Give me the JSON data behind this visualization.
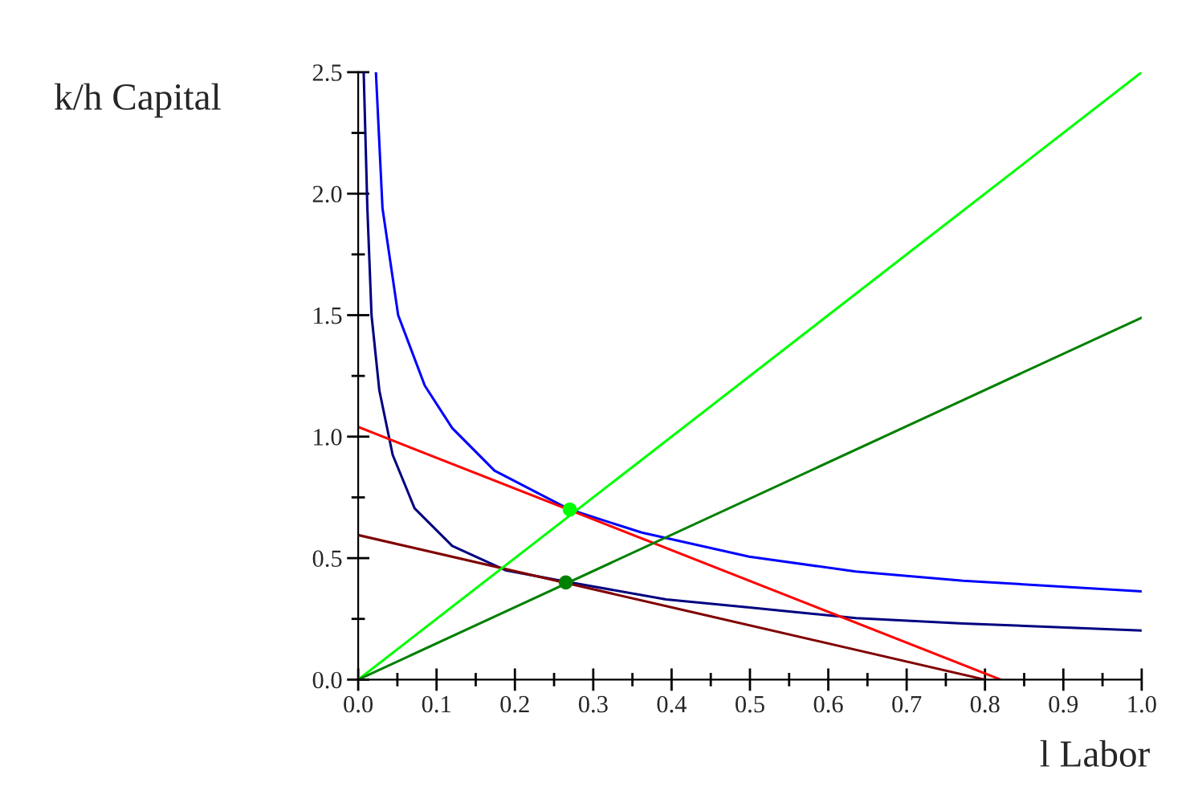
{
  "chart_data": {
    "type": "line",
    "xlabel": "l Labor",
    "ylabel": "k/h Capital",
    "xlim": [
      0,
      1
    ],
    "ylim": [
      0,
      2.5
    ],
    "xticks": [
      {
        "value": 0,
        "label": "0.0"
      },
      {
        "value": 0.05,
        "label": null
      },
      0.1,
      {
        "value": 0.15,
        "label": null
      },
      0.2,
      {
        "value": 0.25,
        "label": null
      },
      0.3,
      {
        "value": 0.35,
        "label": null
      },
      0.4,
      {
        "value": 0.45,
        "label": null
      },
      0.5,
      {
        "value": 0.55,
        "label": null
      },
      0.6,
      {
        "value": 0.65,
        "label": null
      },
      0.7,
      {
        "value": 0.75,
        "label": null
      },
      0.8,
      {
        "value": 0.85,
        "label": null
      },
      0.9,
      {
        "value": 0.95,
        "label": null
      },
      {
        "value": 1,
        "label": "1.0"
      }
    ],
    "yticks": [
      {
        "value": 0,
        "label": "0.0"
      },
      {
        "value": 0.25,
        "label": null
      },
      0.5,
      {
        "value": 0.75,
        "label": null
      },
      {
        "value": 1,
        "label": "1.0"
      },
      {
        "value": 1.25,
        "label": null
      },
      1.5,
      {
        "value": 1.75,
        "label": null
      },
      {
        "value": 2,
        "label": "2.0"
      },
      {
        "value": 2.25,
        "label": null
      },
      2.5
    ],
    "grid": false,
    "legend": false,
    "series": [
      {
        "color": "#0000ff",
        "x": [
          0.0226,
          0.031,
          0.051,
          0.085,
          0.12,
          0.174,
          0.27,
          0.362,
          0.499,
          0.635,
          0.772,
          1.0
        ],
        "values": [
          2.5,
          1.94,
          1.5,
          1.21,
          1.035,
          0.86,
          0.7,
          0.605,
          0.506,
          0.445,
          0.407,
          0.363
        ]
      },
      {
        "color": "#000080",
        "x": [
          0.007,
          0.0117,
          0.017,
          0.027,
          0.044,
          0.072,
          0.12,
          0.188,
          0.266,
          0.393,
          0.499,
          0.635,
          0.772,
          1.0
        ],
        "values": [
          2.5,
          1.94,
          1.5,
          1.19,
          0.925,
          0.705,
          0.55,
          0.45,
          0.403,
          0.33,
          0.297,
          0.253,
          0.231,
          0.202
        ]
      },
      {
        "color": "#ff0000",
        "x": [
          0,
          0.82
        ],
        "values": [
          1.04,
          0
        ]
      },
      {
        "color": "#800000",
        "x": [
          0,
          0.8
        ],
        "values": [
          0.595,
          0
        ]
      },
      {
        "color": "#00ff00",
        "x": [
          0,
          1
        ],
        "values": [
          0,
          2.5
        ]
      },
      {
        "color": "#008000",
        "x": [
          0,
          1
        ],
        "values": [
          0,
          1.49
        ]
      },
      {
        "type": "scatter",
        "color": "#00ff00",
        "marker": "circle",
        "x": [
          0.27
        ],
        "values": [
          0.7
        ]
      },
      {
        "type": "scatter",
        "color": "#008000",
        "marker": "circle",
        "x": [
          0.265
        ],
        "values": [
          0.4
        ]
      }
    ]
  }
}
